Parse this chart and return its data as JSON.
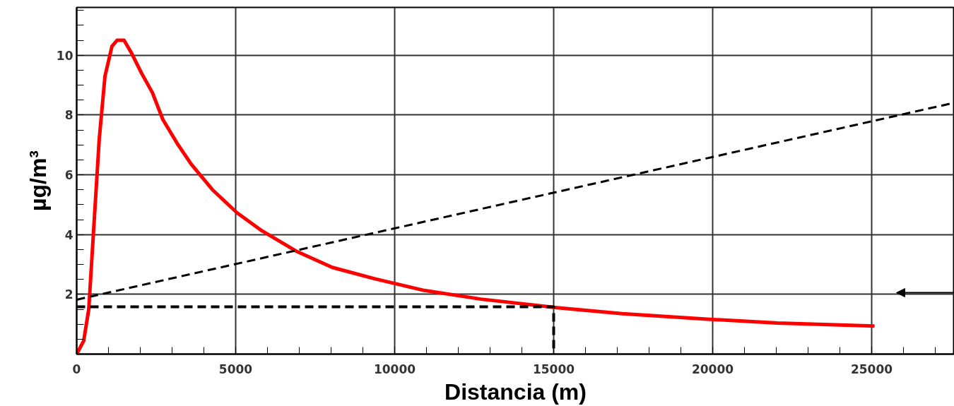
{
  "chart_data": {
    "type": "line",
    "xlabel": "Distancia (m)",
    "ylabel": "µg/m³",
    "xlim": [
      0,
      27600
    ],
    "ylim": [
      0,
      11.6
    ],
    "xticks": [
      0,
      5000,
      10000,
      15000,
      20000,
      25000
    ],
    "yticks": [
      2,
      4,
      6,
      8,
      10
    ],
    "grid": true,
    "marker": "none",
    "series": [
      {
        "color": "#ff0000",
        "line_style": "solid",
        "x": [
          0,
          220,
          380,
          530,
          710,
          890,
          1110,
          1270,
          1490,
          1710,
          2040,
          2380,
          2710,
          3160,
          3600,
          4270,
          5040,
          5820,
          6930,
          8040,
          9380,
          10930,
          12710,
          15040,
          17160,
          19820,
          22040,
          25090
        ],
        "values": [
          0,
          0.44,
          1.5,
          4.1,
          7.2,
          9.3,
          10.3,
          10.5,
          10.5,
          10.1,
          9.4,
          8.75,
          7.85,
          7.05,
          6.36,
          5.5,
          4.73,
          4.13,
          3.43,
          2.9,
          2.52,
          2.13,
          1.84,
          1.56,
          1.35,
          1.17,
          1.04,
          0.94
        ]
      },
      {
        "color": "#000000",
        "line_style": "dashed",
        "x": [
          0,
          27600
        ],
        "values": [
          1.82,
          8.41
        ]
      },
      {
        "color": "#000000",
        "line_style": "dashed",
        "x": [
          0,
          15000,
          15000
        ],
        "values": [
          1.58,
          1.58,
          0
        ]
      }
    ]
  }
}
